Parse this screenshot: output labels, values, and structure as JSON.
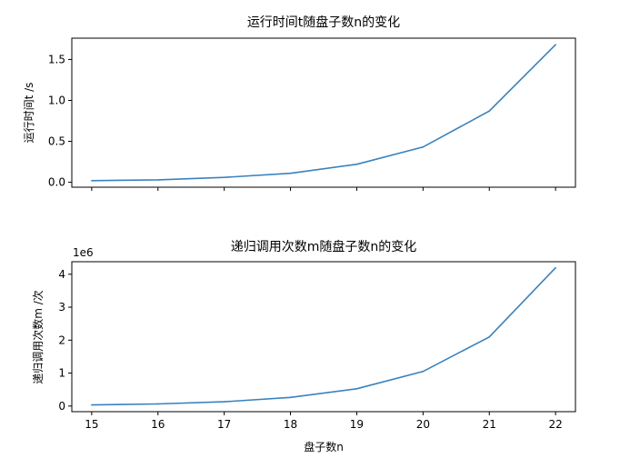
{
  "colors": {
    "line": "#3a82bd",
    "spine": "#000000",
    "background": "#ffffff"
  },
  "chart_data": [
    {
      "type": "line",
      "title": "运行时间t随盘子数n的变化",
      "xlabel": "",
      "ylabel": "运行时间t /s",
      "x": [
        15,
        16,
        17,
        18,
        19,
        20,
        21,
        22
      ],
      "values": [
        0.02,
        0.03,
        0.06,
        0.11,
        0.22,
        0.43,
        0.87,
        1.68
      ],
      "xlim": [
        14.7,
        22.3
      ],
      "ylim": [
        -0.06,
        1.76
      ],
      "xticks": [
        15,
        16,
        17,
        18,
        19,
        20,
        21,
        22
      ],
      "yticks": [
        0.0,
        0.5,
        1.0,
        1.5
      ],
      "ytick_labels": [
        "0.0",
        "0.5",
        "1.0",
        "1.5"
      ],
      "show_xtick_labels": false,
      "offset_text": "",
      "grid": false
    },
    {
      "type": "line",
      "title": "递归调用次数m随盘子数n的变化",
      "xlabel": "盘子数n",
      "ylabel": "递归调用次数m /次",
      "x": [
        15,
        16,
        17,
        18,
        19,
        20,
        21,
        22
      ],
      "values": [
        32767,
        65535,
        131071,
        262143,
        524287,
        1048575,
        2097151,
        4194303
      ],
      "xlim": [
        14.7,
        22.3
      ],
      "ylim": [
        -170000,
        4380000
      ],
      "xticks": [
        15,
        16,
        17,
        18,
        19,
        20,
        21,
        22
      ],
      "xtick_labels": [
        "15",
        "16",
        "17",
        "18",
        "19",
        "20",
        "21",
        "22"
      ],
      "yticks": [
        0,
        1000000,
        2000000,
        3000000,
        4000000
      ],
      "ytick_labels": [
        "0",
        "1",
        "2",
        "3",
        "4"
      ],
      "show_xtick_labels": true,
      "offset_text": "1e6",
      "grid": false
    }
  ]
}
